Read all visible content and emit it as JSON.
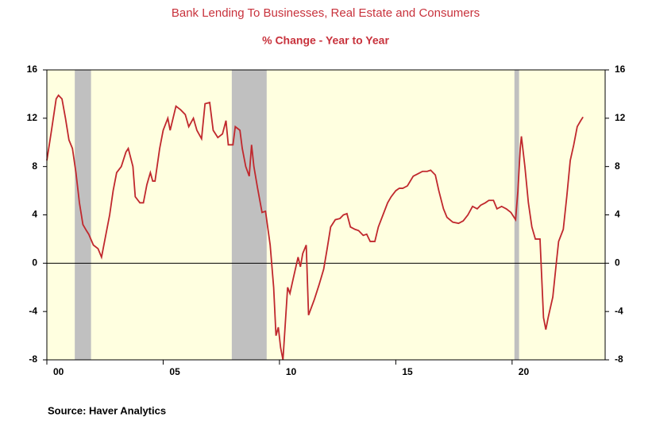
{
  "chart_data": {
    "type": "line",
    "title": "Bank Lending To Businesses, Real Estate and Consumers",
    "subtitle": "% Change - Year to Year",
    "source": "Source:  Haver Analytics",
    "xlim": [
      2000,
      2024
    ],
    "xticks": [
      {
        "value": 2000,
        "label": "00"
      },
      {
        "value": 2005,
        "label": "05"
      },
      {
        "value": 2010,
        "label": "10"
      },
      {
        "value": 2015,
        "label": "15"
      },
      {
        "value": 2020,
        "label": "20"
      }
    ],
    "ylim": [
      -8,
      16
    ],
    "yticks": [
      -8,
      -4,
      0,
      4,
      8,
      12,
      16
    ],
    "background": "#ffffe0",
    "shaded_color": "#c0c0c0",
    "shaded_regions": [
      [
        2001.2,
        2001.9
      ],
      [
        2007.95,
        2009.45
      ],
      [
        2020.1,
        2020.3
      ]
    ],
    "series": [
      {
        "color": "#c0282d",
        "x": [
          2000.0,
          2000.2,
          2000.4,
          2000.5,
          2000.65,
          2000.8,
          2000.95,
          2001.1,
          2001.25,
          2001.4,
          2001.55,
          2001.7,
          2001.8,
          2002.0,
          2002.2,
          2002.35,
          2002.5,
          2002.7,
          2002.85,
          2003.0,
          2003.2,
          2003.4,
          2003.5,
          2003.7,
          2003.8,
          2004.0,
          2004.15,
          2004.3,
          2004.45,
          2004.55,
          2004.65,
          2004.85,
          2005.0,
          2005.2,
          2005.3,
          2005.55,
          2005.75,
          2005.95,
          2006.1,
          2006.3,
          2006.45,
          2006.65,
          2006.8,
          2007.0,
          2007.15,
          2007.35,
          2007.55,
          2007.7,
          2007.8,
          2008.0,
          2008.1,
          2008.3,
          2008.4,
          2008.55,
          2008.7,
          2008.8,
          2008.9,
          2009.05,
          2009.25,
          2009.4,
          2009.6,
          2009.75,
          2009.85,
          2009.95,
          2010.05,
          2010.15,
          2010.35,
          2010.45,
          2010.6,
          2010.8,
          2010.9,
          2011.0,
          2011.15,
          2011.25,
          2011.5,
          2011.7,
          2011.9,
          2012.05,
          2012.2,
          2012.4,
          2012.6,
          2012.75,
          2012.9,
          2013.05,
          2013.25,
          2013.4,
          2013.6,
          2013.75,
          2013.9,
          2014.1,
          2014.25,
          2014.45,
          2014.65,
          2014.8,
          2015.0,
          2015.15,
          2015.3,
          2015.5,
          2015.75,
          2015.95,
          2016.15,
          2016.35,
          2016.5,
          2016.7,
          2016.85,
          2017.05,
          2017.2,
          2017.45,
          2017.7,
          2017.9,
          2018.1,
          2018.3,
          2018.5,
          2018.65,
          2018.85,
          2019.0,
          2019.2,
          2019.35,
          2019.55,
          2019.75,
          2019.95,
          2020.15,
          2020.25,
          2020.35,
          2020.4,
          2020.55,
          2020.7,
          2020.85,
          2021.0,
          2021.2,
          2021.35,
          2021.45,
          2021.55,
          2021.75,
          2021.9,
          2022.0,
          2022.2,
          2022.35,
          2022.5,
          2022.65,
          2022.8,
          2022.95,
          2023.05
        ],
        "values": [
          8.5,
          11,
          13.6,
          13.9,
          13.6,
          12,
          10.2,
          9.5,
          7.5,
          5,
          3.2,
          2.7,
          2.4,
          1.5,
          1.2,
          0.5,
          2,
          4,
          6,
          7.5,
          8,
          9.2,
          9.5,
          8,
          5.5,
          5,
          5,
          6.5,
          7.5,
          6.8,
          6.8,
          9.5,
          11,
          12,
          11,
          13,
          12.7,
          12.3,
          11.3,
          12,
          11,
          10.3,
          13.2,
          13.3,
          11,
          10.4,
          10.7,
          11.8,
          9.8,
          9.8,
          11.3,
          11,
          9.5,
          8,
          7.2,
          9.8,
          8,
          6.3,
          4.2,
          4.3,
          1.5,
          -2,
          -6,
          -5.3,
          -7,
          -8,
          -2,
          -2.5,
          -1.2,
          0.5,
          -0.3,
          0.8,
          1.5,
          -4.3,
          -3,
          -1.8,
          -0.5,
          1.2,
          3,
          3.6,
          3.7,
          4,
          4.1,
          3,
          2.8,
          2.7,
          2.3,
          2.4,
          1.8,
          1.8,
          3,
          4,
          5,
          5.5,
          6,
          6.2,
          6.2,
          6.4,
          7.2,
          7.4,
          7.6,
          7.6,
          7.7,
          7.3,
          6,
          4.5,
          3.8,
          3.4,
          3.3,
          3.5,
          4,
          4.7,
          4.5,
          4.8,
          5,
          5.2,
          5.2,
          4.5,
          4.7,
          4.5,
          4.2,
          3.6,
          6,
          9.5,
          10.5,
          8,
          5,
          3,
          2,
          2,
          -4.5,
          -5.5,
          -4.5,
          -2.8,
          0,
          1.8,
          2.8,
          5.5,
          8.5,
          9.8,
          11.3,
          11.8,
          12.1
        ]
      }
    ]
  }
}
